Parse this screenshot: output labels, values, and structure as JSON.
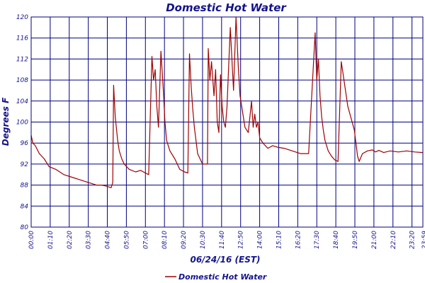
{
  "chart_data": {
    "type": "line",
    "title": "Domestic Hot Water",
    "xlabel": "06/24/16 (EST)",
    "ylabel": "Degrees F",
    "ylim": [
      80,
      120
    ],
    "yticks": [
      "80",
      "84",
      "88",
      "92",
      "96",
      "100",
      "104",
      "108",
      "112",
      "116",
      "120"
    ],
    "x_ticks": [
      "00:00",
      "01:10",
      "02:20",
      "03:30",
      "04:40",
      "05:50",
      "07:00",
      "08:10",
      "09:20",
      "10:30",
      "11:40",
      "12:50",
      "14:00",
      "15:10",
      "16:20",
      "17:30",
      "18:40",
      "19:50",
      "21:00",
      "22:10",
      "23:20",
      "23:59"
    ],
    "x_unit": "hours",
    "xlim": [
      0,
      24
    ],
    "grid": true,
    "legend_position": "bottom-left",
    "colors": {
      "line": "#a00000",
      "grid": "#000080",
      "text": "#14148c"
    },
    "series": [
      {
        "name": "Domestic Hot Water",
        "x": [
          0.0,
          0.1,
          0.25,
          0.5,
          0.8,
          1.1,
          1.5,
          2.0,
          2.5,
          3.0,
          3.5,
          4.0,
          4.3,
          4.6,
          4.9,
          5.0,
          5.05,
          5.15,
          5.3,
          5.4,
          5.55,
          5.7,
          6.0,
          6.4,
          6.7,
          7.0,
          7.2,
          7.4,
          7.5,
          7.6,
          7.7,
          7.8,
          7.95,
          8.1,
          8.2,
          8.3,
          8.5,
          8.8,
          9.1,
          9.4,
          9.6,
          9.7,
          9.8,
          9.9,
          10.0,
          10.2,
          10.5,
          10.8,
          10.85,
          10.95,
          11.05,
          11.2,
          11.3,
          11.4,
          11.5,
          11.6,
          11.7,
          11.8,
          11.9,
          12.0,
          12.2,
          12.4,
          12.5,
          12.55,
          12.7,
          12.8,
          12.9,
          13.1,
          13.3,
          13.5,
          13.6,
          13.7,
          13.8,
          13.9,
          14.0,
          14.1,
          14.2,
          14.5,
          14.8,
          15.1,
          15.5,
          16.0,
          16.5,
          17.0,
          17.4,
          17.5,
          17.6,
          17.7,
          17.8,
          17.9,
          18.0,
          18.1,
          18.2,
          18.4,
          18.6,
          18.8,
          19.0,
          19.4,
          19.8,
          19.9,
          20.0,
          20.1,
          20.3,
          20.6,
          20.9,
          21.1,
          21.3,
          21.6,
          22.0,
          22.5,
          23.0,
          23.5,
          23.99
        ],
        "values": [
          97.5,
          96.0,
          95.5,
          94.0,
          93.0,
          91.5,
          91.0,
          90.0,
          89.5,
          89.0,
          88.5,
          88.0,
          88.0,
          87.8,
          87.5,
          88.5,
          107.0,
          101.0,
          96.5,
          94.5,
          93.0,
          92.0,
          91.0,
          90.5,
          90.8,
          90.3,
          90.0,
          112.5,
          108.0,
          110.0,
          103.0,
          99.0,
          113.5,
          106.0,
          100.0,
          96.5,
          94.5,
          93.0,
          91.0,
          90.5,
          90.3,
          113.0,
          107.0,
          102.5,
          99.0,
          94.0,
          92.0,
          92.0,
          114.0,
          108.0,
          111.5,
          105.0,
          110.0,
          100.0,
          98.0,
          109.0,
          103.0,
          100.0,
          99.0,
          103.0,
          118.0,
          106.0,
          115.0,
          120.0,
          110.0,
          105.0,
          103.0,
          99.0,
          98.0,
          104.0,
          99.0,
          101.5,
          99.0,
          100.0,
          97.0,
          96.5,
          96.0,
          95.0,
          95.5,
          95.2,
          95.0,
          94.5,
          94.0,
          94.0,
          117.0,
          108.0,
          112.0,
          105.0,
          101.0,
          98.5,
          96.5,
          95.5,
          94.5,
          93.5,
          92.8,
          92.5,
          111.5,
          103.0,
          98.5,
          96.0,
          93.5,
          92.5,
          94.0,
          94.5,
          94.7,
          94.3,
          94.6,
          94.2,
          94.5,
          94.3,
          94.5,
          94.3,
          94.2
        ]
      }
    ]
  }
}
